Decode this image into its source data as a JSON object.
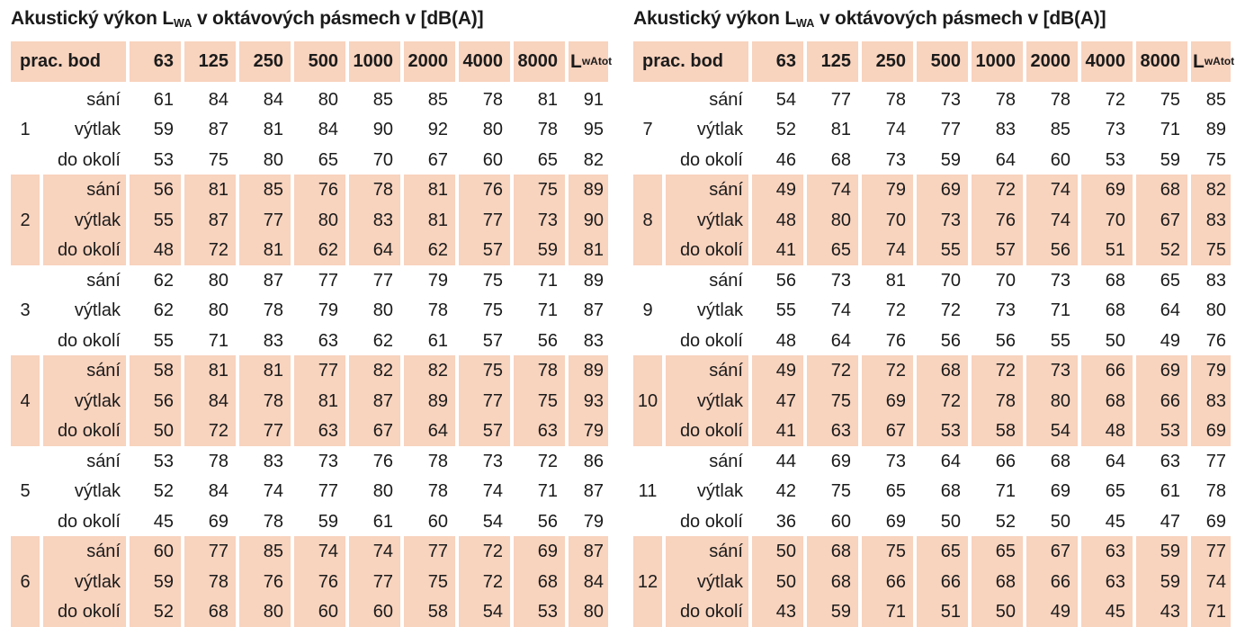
{
  "colors": {
    "band": "#f8d3be",
    "text": "#1b1b1b",
    "background": "#ffffff"
  },
  "tables": [
    {
      "title": {
        "prefix": "Akustický výkon L",
        "sub": "WA",
        "suffix": " v oktávových pásmech v [dB(A)]"
      },
      "header": {
        "point_col": "prac. bod",
        "freq_cols": [
          "63",
          "125",
          "250",
          "500",
          "1000",
          "2000",
          "4000",
          "8000"
        ],
        "total_col": {
          "main": "L",
          "sub": "wAtot"
        }
      },
      "groups": [
        {
          "point": "1",
          "highlighted": false,
          "rows": [
            {
              "label": "sání",
              "values": [
                61,
                84,
                84,
                80,
                85,
                85,
                78,
                81,
                91
              ]
            },
            {
              "label": "výtlak",
              "values": [
                59,
                87,
                81,
                84,
                90,
                92,
                80,
                78,
                95
              ]
            },
            {
              "label": "do okolí",
              "values": [
                53,
                75,
                80,
                65,
                70,
                67,
                60,
                65,
                82
              ]
            }
          ]
        },
        {
          "point": "2",
          "highlighted": true,
          "rows": [
            {
              "label": "sání",
              "values": [
                56,
                81,
                85,
                76,
                78,
                81,
                76,
                75,
                89
              ]
            },
            {
              "label": "výtlak",
              "values": [
                55,
                87,
                77,
                80,
                83,
                81,
                77,
                73,
                90
              ]
            },
            {
              "label": "do okolí",
              "values": [
                48,
                72,
                81,
                62,
                64,
                62,
                57,
                59,
                81
              ]
            }
          ]
        },
        {
          "point": "3",
          "highlighted": false,
          "rows": [
            {
              "label": "sání",
              "values": [
                62,
                80,
                87,
                77,
                77,
                79,
                75,
                71,
                89
              ]
            },
            {
              "label": "výtlak",
              "values": [
                62,
                80,
                78,
                79,
                80,
                78,
                75,
                71,
                87
              ]
            },
            {
              "label": "do okolí",
              "values": [
                55,
                71,
                83,
                63,
                62,
                61,
                57,
                56,
                83
              ]
            }
          ]
        },
        {
          "point": "4",
          "highlighted": true,
          "rows": [
            {
              "label": "sání",
              "values": [
                58,
                81,
                81,
                77,
                82,
                82,
                75,
                78,
                89
              ]
            },
            {
              "label": "výtlak",
              "values": [
                56,
                84,
                78,
                81,
                87,
                89,
                77,
                75,
                93
              ]
            },
            {
              "label": "do okolí",
              "values": [
                50,
                72,
                77,
                63,
                67,
                64,
                57,
                63,
                79
              ]
            }
          ]
        },
        {
          "point": "5",
          "highlighted": false,
          "rows": [
            {
              "label": "sání",
              "values": [
                53,
                78,
                83,
                73,
                76,
                78,
                73,
                72,
                86
              ]
            },
            {
              "label": "výtlak",
              "values": [
                52,
                84,
                74,
                77,
                80,
                78,
                74,
                71,
                87
              ]
            },
            {
              "label": "do okolí",
              "values": [
                45,
                69,
                78,
                59,
                61,
                60,
                54,
                56,
                79
              ]
            }
          ]
        },
        {
          "point": "6",
          "highlighted": true,
          "rows": [
            {
              "label": "sání",
              "values": [
                60,
                77,
                85,
                74,
                74,
                77,
                72,
                69,
                87
              ]
            },
            {
              "label": "výtlak",
              "values": [
                59,
                78,
                76,
                76,
                77,
                75,
                72,
                68,
                84
              ]
            },
            {
              "label": "do okolí",
              "values": [
                52,
                68,
                80,
                60,
                60,
                58,
                54,
                53,
                80
              ]
            }
          ]
        }
      ]
    },
    {
      "title": {
        "prefix": "Akustický výkon L",
        "sub": "WA",
        "suffix": " v oktávových pásmech v [dB(A)]"
      },
      "header": {
        "point_col": "prac. bod",
        "freq_cols": [
          "63",
          "125",
          "250",
          "500",
          "1000",
          "2000",
          "4000",
          "8000"
        ],
        "total_col": {
          "main": "L",
          "sub": "wAtot"
        }
      },
      "groups": [
        {
          "point": "7",
          "highlighted": false,
          "rows": [
            {
              "label": "sání",
              "values": [
                54,
                77,
                78,
                73,
                78,
                78,
                72,
                75,
                85
              ]
            },
            {
              "label": "výtlak",
              "values": [
                52,
                81,
                74,
                77,
                83,
                85,
                73,
                71,
                89
              ]
            },
            {
              "label": "do okolí",
              "values": [
                46,
                68,
                73,
                59,
                64,
                60,
                53,
                59,
                75
              ]
            }
          ]
        },
        {
          "point": "8",
          "highlighted": true,
          "rows": [
            {
              "label": "sání",
              "values": [
                49,
                74,
                79,
                69,
                72,
                74,
                69,
                68,
                82
              ]
            },
            {
              "label": "výtlak",
              "values": [
                48,
                80,
                70,
                73,
                76,
                74,
                70,
                67,
                83
              ]
            },
            {
              "label": "do okolí",
              "values": [
                41,
                65,
                74,
                55,
                57,
                56,
                51,
                52,
                75
              ]
            }
          ]
        },
        {
          "point": "9",
          "highlighted": false,
          "rows": [
            {
              "label": "sání",
              "values": [
                56,
                73,
                81,
                70,
                70,
                73,
                68,
                65,
                83
              ]
            },
            {
              "label": "výtlak",
              "values": [
                55,
                74,
                72,
                72,
                73,
                71,
                68,
                64,
                80
              ]
            },
            {
              "label": "do okolí",
              "values": [
                48,
                64,
                76,
                56,
                56,
                55,
                50,
                49,
                76
              ]
            }
          ]
        },
        {
          "point": "10",
          "highlighted": true,
          "rows": [
            {
              "label": "sání",
              "values": [
                49,
                72,
                72,
                68,
                72,
                73,
                66,
                69,
                79
              ]
            },
            {
              "label": "výtlak",
              "values": [
                47,
                75,
                69,
                72,
                78,
                80,
                68,
                66,
                83
              ]
            },
            {
              "label": "do okolí",
              "values": [
                41,
                63,
                67,
                53,
                58,
                54,
                48,
                53,
                69
              ]
            }
          ]
        },
        {
          "point": "11",
          "highlighted": false,
          "rows": [
            {
              "label": "sání",
              "values": [
                44,
                69,
                73,
                64,
                66,
                68,
                64,
                63,
                77
              ]
            },
            {
              "label": "výtlak",
              "values": [
                42,
                75,
                65,
                68,
                71,
                69,
                65,
                61,
                78
              ]
            },
            {
              "label": "do okolí",
              "values": [
                36,
                60,
                69,
                50,
                52,
                50,
                45,
                47,
                69
              ]
            }
          ]
        },
        {
          "point": "12",
          "highlighted": true,
          "rows": [
            {
              "label": "sání",
              "values": [
                50,
                68,
                75,
                65,
                65,
                67,
                63,
                59,
                77
              ]
            },
            {
              "label": "výtlak",
              "values": [
                50,
                68,
                66,
                66,
                68,
                66,
                63,
                59,
                74
              ]
            },
            {
              "label": "do okolí",
              "values": [
                43,
                59,
                71,
                51,
                50,
                49,
                45,
                43,
                71
              ]
            }
          ]
        }
      ]
    }
  ]
}
